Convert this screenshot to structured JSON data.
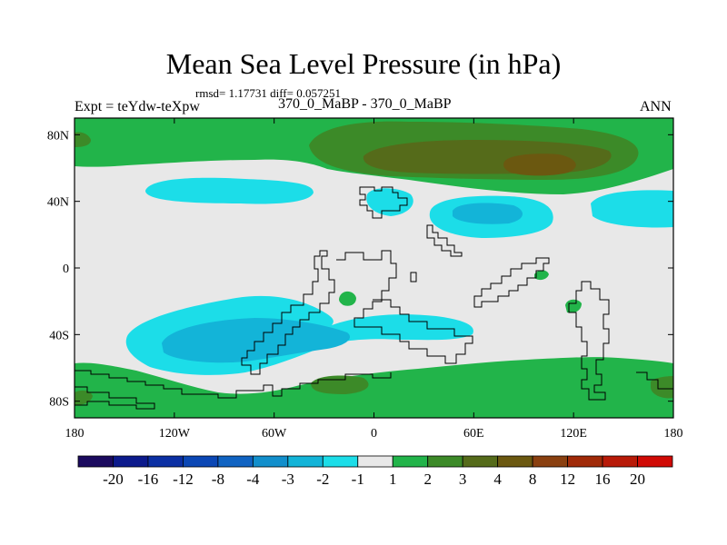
{
  "chart_data": {
    "type": "heatmap",
    "title": "Mean Sea Level Pressure (in hPa)",
    "subtitle_stats": "rmsd= 1.17731 diff= 0.057251",
    "left_label": "Expt = teYdw-teXpw",
    "center_label": "370_0_MaBP - 370_0_MaBP",
    "right_label": "ANN",
    "x_ticks": [
      "180",
      "120W",
      "60W",
      "0",
      "60E",
      "120E",
      "180"
    ],
    "x_tick_values": [
      -180,
      -120,
      -60,
      0,
      60,
      120,
      180
    ],
    "y_ticks": [
      "80N",
      "40N",
      "0",
      "40S",
      "80S"
    ],
    "y_tick_values": [
      80,
      40,
      0,
      -40,
      -80
    ],
    "xlim": [
      -180,
      180
    ],
    "ylim": [
      -90,
      90
    ],
    "colorbar": {
      "labels": [
        "-20",
        "-16",
        "-12",
        "-8",
        "-4",
        "-3",
        "-2",
        "-1",
        "1",
        "2",
        "3",
        "4",
        "8",
        "12",
        "16",
        "20"
      ],
      "colors": [
        "#1b0a5e",
        "#0c1a8c",
        "#0b2fa3",
        "#0b47b5",
        "#1063c2",
        "#128fcc",
        "#13b4d8",
        "#1cdde8",
        "#e8e8e8",
        "#22b44a",
        "#3c8a28",
        "#556b1a",
        "#6b5810",
        "#8a4010",
        "#a02a08",
        "#b81a08",
        "#d00a05"
      ]
    },
    "regions": [
      {
        "level": "1 to 2",
        "color": "#22b44a",
        "description": "positive anomaly, northern high latitudes"
      },
      {
        "level": "2 to 3",
        "color": "#3c8a28",
        "description": "Arctic / northern Asia"
      },
      {
        "level": "3 to 4",
        "color": "#556b1a",
        "description": "northern Asia core"
      },
      {
        "level": "4 to 8",
        "color": "#6b5810",
        "description": "maximum near 100E, 70N"
      },
      {
        "level": "-1 to -2",
        "color": "#1cdde8",
        "description": "negative anomaly, mid-latitudes and southern Pacific"
      },
      {
        "level": "-2 to -3",
        "color": "#13b4d8",
        "description": "cores near 60E 35N and 120W 45S"
      },
      {
        "level": "1 to 2",
        "color": "#22b44a",
        "description": "positive anomaly, southern high latitudes"
      }
    ]
  }
}
